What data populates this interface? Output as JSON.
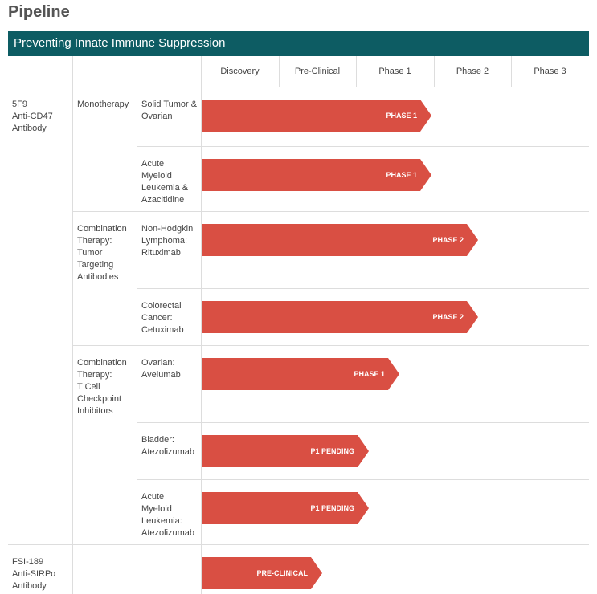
{
  "header": {
    "title": "Pipeline"
  },
  "banner": "Preventing Innate Immune Suppression",
  "phases": [
    "Discovery",
    "Pre-Clinical",
    "Phase 1",
    "Phase 2",
    "Phase 3"
  ],
  "drugs": [
    {
      "lines": [
        "5F9",
        "Anti-CD47",
        "Antibody"
      ]
    },
    {
      "lines": [
        "FSI-189",
        "Anti-SIRPα",
        "Antibody"
      ]
    }
  ],
  "therapies": [
    {
      "lines": [
        "Monotherapy"
      ]
    },
    {
      "lines": [
        "Combination",
        "Therapy:",
        "Tumor",
        "Targeting",
        "Antibodies"
      ]
    },
    {
      "lines": [
        "Combination",
        "Therapy:",
        "T Cell",
        "Checkpoint",
        "Inhibitors"
      ]
    }
  ],
  "rows": [
    {
      "indication": [
        "Solid Tumor &",
        "Ovarian"
      ],
      "status": "PHASE 1"
    },
    {
      "indication": [
        "Acute",
        "Myeloid",
        "Leukemia &",
        "Azacitidine"
      ],
      "status": "PHASE 1"
    },
    {
      "indication": [
        "Non-Hodgkin",
        "Lymphoma:",
        "Rituximab"
      ],
      "status": "PHASE 2"
    },
    {
      "indication": [
        "Colorectal",
        "Cancer:",
        "Cetuximab"
      ],
      "status": "PHASE 2"
    },
    {
      "indication": [
        "Ovarian:",
        "Avelumab"
      ],
      "status": "PHASE 1"
    },
    {
      "indication": [
        "Bladder:",
        "Atezolizumab"
      ],
      "status": "P1 PENDING"
    },
    {
      "indication": [
        "Acute",
        "Myeloid",
        "Leukemia:",
        "Atezolizumab"
      ],
      "status": "P1 PENDING"
    },
    {
      "status": "PRE-CLINICAL"
    }
  ]
}
